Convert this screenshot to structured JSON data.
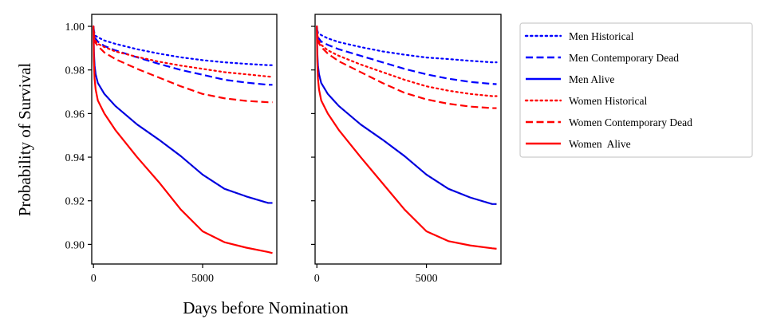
{
  "chart_data": {
    "type": "line",
    "ylabel": "Probability of Survival",
    "xlabel": "Days before Nomination",
    "xlim": [
      -80,
      8400
    ],
    "ylim": [
      0.891,
      1.0055
    ],
    "xticks": [
      0,
      5000
    ],
    "yticks": [
      0.9,
      0.92,
      0.94,
      0.96,
      0.98,
      1.0
    ],
    "ytick_labels": [
      "0.90",
      "0.92",
      "0.94",
      "0.96",
      "0.98",
      "1.00"
    ],
    "series_styles": [
      {
        "name": "Men Historical",
        "color": "#0000ff",
        "dash": "dotted"
      },
      {
        "name": "Men Contemporary Dead",
        "color": "#0000ff",
        "dash": "dashed"
      },
      {
        "name": "Men Alive",
        "color": "#0000ff",
        "dash": "solid"
      },
      {
        "name": "Women Historical",
        "color": "#ff0000",
        "dash": "dotted"
      },
      {
        "name": "Women Contemporary Dead",
        "color": "#ff0000",
        "dash": "dashed"
      },
      {
        "name": "Women  Alive",
        "color": "#ff0000",
        "dash": "solid"
      }
    ],
    "legend_position": "outside-right",
    "grid": false,
    "panels": [
      {
        "series": [
          {
            "name": "Men Historical",
            "x": [
              0,
              50,
              200,
              500,
              1000,
              2000,
              3000,
              4000,
              5000,
              6000,
              7000,
              8000,
              8200
            ],
            "y": [
              1.0,
              0.996,
              0.995,
              0.9935,
              0.992,
              0.9895,
              0.9875,
              0.9858,
              0.9845,
              0.9835,
              0.9828,
              0.9822,
              0.9822
            ]
          },
          {
            "name": "Men Contemporary Dead",
            "x": [
              0,
              50,
              200,
              500,
              1000,
              2000,
              3000,
              4000,
              5000,
              6000,
              7000,
              8000,
              8200
            ],
            "y": [
              1.0,
              0.995,
              0.993,
              0.991,
              0.989,
              0.9858,
              0.9828,
              0.98,
              0.9778,
              0.9755,
              0.9742,
              0.9732,
              0.9732
            ]
          },
          {
            "name": "Men Alive",
            "x": [
              0,
              20,
              50,
              100,
              200,
              500,
              1000,
              2000,
              3000,
              4000,
              5000,
              6000,
              7000,
              8000,
              8200
            ],
            "y": [
              1.0,
              0.988,
              0.982,
              0.978,
              0.974,
              0.969,
              0.9635,
              0.955,
              0.948,
              0.9405,
              0.932,
              0.9255,
              0.922,
              0.919,
              0.919
            ]
          },
          {
            "name": "Women Historical",
            "x": [
              0,
              50,
              200,
              500,
              1000,
              2000,
              3000,
              4000,
              5000,
              6000,
              7000,
              8000,
              8200
            ],
            "y": [
              1.0,
              0.994,
              0.992,
              0.9905,
              0.9885,
              0.986,
              0.9838,
              0.982,
              0.9805,
              0.979,
              0.978,
              0.977,
              0.9768
            ]
          },
          {
            "name": "Women Contemporary Dead",
            "x": [
              0,
              50,
              200,
              500,
              1000,
              2000,
              3000,
              4000,
              5000,
              6000,
              7000,
              8000,
              8200
            ],
            "y": [
              0.999,
              0.993,
              0.991,
              0.988,
              0.985,
              0.9805,
              0.9765,
              0.9725,
              0.969,
              0.967,
              0.9658,
              0.9652,
              0.9652
            ]
          },
          {
            "name": "Women  Alive",
            "x": [
              0,
              20,
              50,
              100,
              200,
              500,
              1000,
              2000,
              3000,
              4000,
              5000,
              6000,
              7000,
              8000,
              8200
            ],
            "y": [
              1.0,
              0.984,
              0.976,
              0.971,
              0.966,
              0.96,
              0.9525,
              0.94,
              0.9285,
              0.916,
              0.906,
              0.901,
              0.8985,
              0.8965,
              0.896
            ]
          }
        ]
      },
      {
        "series": [
          {
            "name": "Men Historical",
            "x": [
              0,
              50,
              200,
              500,
              1000,
              2000,
              3000,
              4000,
              5000,
              6000,
              7000,
              8000,
              8200
            ],
            "y": [
              1.0,
              0.997,
              0.996,
              0.9945,
              0.9928,
              0.9905,
              0.9885,
              0.987,
              0.9857,
              0.985,
              0.9842,
              0.9835,
              0.9835
            ]
          },
          {
            "name": "Men Contemporary Dead",
            "x": [
              0,
              50,
              200,
              500,
              1000,
              2000,
              3000,
              4000,
              5000,
              6000,
              7000,
              8000,
              8200
            ],
            "y": [
              1.0,
              0.995,
              0.993,
              0.9915,
              0.9895,
              0.9865,
              0.9835,
              0.9805,
              0.978,
              0.976,
              0.9745,
              0.9736,
              0.9735
            ]
          },
          {
            "name": "Men Alive",
            "x": [
              0,
              20,
              50,
              100,
              200,
              500,
              1000,
              2000,
              3000,
              4000,
              5000,
              6000,
              7000,
              8000,
              8200
            ],
            "y": [
              1.0,
              0.988,
              0.982,
              0.978,
              0.974,
              0.969,
              0.9635,
              0.955,
              0.948,
              0.9405,
              0.932,
              0.9255,
              0.9215,
              0.9185,
              0.9185
            ]
          },
          {
            "name": "Women Historical",
            "x": [
              0,
              50,
              200,
              500,
              1000,
              2000,
              3000,
              4000,
              5000,
              6000,
              7000,
              8000,
              8200
            ],
            "y": [
              1.0,
              0.994,
              0.9915,
              0.989,
              0.9865,
              0.9825,
              0.979,
              0.9755,
              0.9725,
              0.9705,
              0.969,
              0.968,
              0.968
            ]
          },
          {
            "name": "Women Contemporary Dead",
            "x": [
              0,
              50,
              200,
              500,
              1000,
              2000,
              3000,
              4000,
              5000,
              6000,
              7000,
              8000,
              8200
            ],
            "y": [
              0.999,
              0.993,
              0.9905,
              0.9875,
              0.984,
              0.979,
              0.974,
              0.9695,
              0.9665,
              0.9645,
              0.9632,
              0.9625,
              0.9625
            ]
          },
          {
            "name": "Women  Alive",
            "x": [
              0,
              20,
              50,
              100,
              200,
              500,
              1000,
              2000,
              3000,
              4000,
              5000,
              6000,
              7000,
              8000,
              8200
            ],
            "y": [
              1.0,
              0.984,
              0.976,
              0.971,
              0.966,
              0.96,
              0.9525,
              0.94,
              0.928,
              0.916,
              0.906,
              0.9015,
              0.8995,
              0.8982,
              0.898
            ]
          }
        ]
      }
    ]
  }
}
